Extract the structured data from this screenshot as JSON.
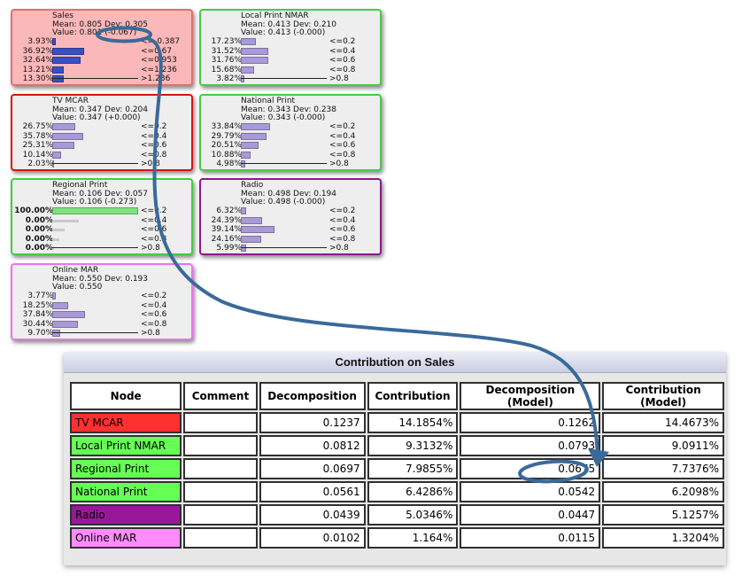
{
  "nodes": {
    "sales": {
      "name": "Sales",
      "stats": "Mean: 0.805 Dev: 0.305",
      "value": "Value: 0.801 (-0.067)",
      "bins": [
        {
          "pct": "3.93%",
          "label": "<=-0.387",
          "frac": 0.039
        },
        {
          "pct": "36.92%",
          "label": "<=0.67",
          "frac": 0.369
        },
        {
          "pct": "32.64%",
          "label": "<=0.953",
          "frac": 0.326
        },
        {
          "pct": "13.21%",
          "label": "<=1.236",
          "frac": 0.132
        },
        {
          "pct": "13.30%",
          "label": ">1.236",
          "frac": 0.133
        }
      ]
    },
    "local": {
      "name": "Local Print NMAR",
      "stats": "Mean: 0.413 Dev: 0.210",
      "value": "Value: 0.413 (-0.000)",
      "bins": [
        {
          "pct": "17.23%",
          "label": "<=0.2",
          "frac": 0.172
        },
        {
          "pct": "31.52%",
          "label": "<=0.4",
          "frac": 0.315
        },
        {
          "pct": "31.76%",
          "label": "<=0.6",
          "frac": 0.318
        },
        {
          "pct": "15.68%",
          "label": "<=0.8",
          "frac": 0.157
        },
        {
          "pct": "3.82%",
          "label": ">0.8",
          "frac": 0.038
        }
      ]
    },
    "tv": {
      "name": "TV MCAR",
      "stats": "Mean: 0.347 Dev: 0.204",
      "value": "Value: 0.347 (+0.000)",
      "bins": [
        {
          "pct": "26.75%",
          "label": "<=0.2",
          "frac": 0.268
        },
        {
          "pct": "35.78%",
          "label": "<=0.4",
          "frac": 0.358
        },
        {
          "pct": "25.31%",
          "label": "<=0.6",
          "frac": 0.253
        },
        {
          "pct": "10.14%",
          "label": "<=0.8",
          "frac": 0.101
        },
        {
          "pct": "2.03%",
          "label": ">0.8",
          "frac": 0.02
        }
      ]
    },
    "national": {
      "name": "National Print",
      "stats": "Mean: 0.343 Dev: 0.238",
      "value": "Value: 0.343 (-0.000)",
      "bins": [
        {
          "pct": "33.84%",
          "label": "<=0.2",
          "frac": 0.338
        },
        {
          "pct": "29.79%",
          "label": "<=0.4",
          "frac": 0.298
        },
        {
          "pct": "20.51%",
          "label": "<=0.6",
          "frac": 0.205
        },
        {
          "pct": "10.88%",
          "label": "<=0.8",
          "frac": 0.109
        },
        {
          "pct": "4.98%",
          "label": ">0.8",
          "frac": 0.05
        }
      ]
    },
    "regional": {
      "name": "Regional Print",
      "stats": "Mean: 0.106 Dev: 0.057",
      "value": "Value: 0.106 (-0.273)",
      "bins": [
        {
          "pct": "100.00%",
          "label": "<=0.2",
          "frac": 1.0
        },
        {
          "pct": "0.00%",
          "label": "<=0.4",
          "frac": 0.0
        },
        {
          "pct": "0.00%",
          "label": "<=0.6",
          "frac": 0.0
        },
        {
          "pct": "0.00%",
          "label": "<=0.8",
          "frac": 0.0
        },
        {
          "pct": "0.00%",
          "label": ">0.8",
          "frac": 0.0
        }
      ]
    },
    "radio": {
      "name": "Radio",
      "stats": "Mean: 0.498 Dev: 0.194",
      "value": "Value: 0.498 (-0.000)",
      "bins": [
        {
          "pct": "6.32%",
          "label": "<=0.2",
          "frac": 0.063
        },
        {
          "pct": "24.39%",
          "label": "<=0.4",
          "frac": 0.244
        },
        {
          "pct": "39.14%",
          "label": "<=0.6",
          "frac": 0.391
        },
        {
          "pct": "24.16%",
          "label": "<=0.8",
          "frac": 0.242
        },
        {
          "pct": "5.99%",
          "label": ">0.8",
          "frac": 0.06
        }
      ]
    },
    "online": {
      "name": "Online MAR",
      "stats": "Mean: 0.550 Dev: 0.193",
      "value": "Value: 0.550",
      "bins": [
        {
          "pct": "3.77%",
          "label": "<=0.2",
          "frac": 0.038
        },
        {
          "pct": "18.25%",
          "label": "<=0.4",
          "frac": 0.183
        },
        {
          "pct": "37.84%",
          "label": "<=0.6",
          "frac": 0.378
        },
        {
          "pct": "30.44%",
          "label": "<=0.8",
          "frac": 0.304
        },
        {
          "pct": "9.70%",
          "label": ">0.8",
          "frac": 0.097
        }
      ]
    }
  },
  "colors": {
    "sales_bg": "#fbb8b8",
    "sales_border": "#e07070",
    "green_border": "#44cc44",
    "red_border": "#e01010",
    "purple_border": "#8a1a8a",
    "pink_border": "#f070f0",
    "node_bg": "#eeeeee",
    "bar_purple": "#a79ad6",
    "bar_blue": "#3a4fc0",
    "bar_green": "#7ee07e",
    "bar_gray": "#c8c8c8",
    "arrow": "#3a6a9a",
    "cell_tv": "#ff3030",
    "cell_local": "#66ff55",
    "cell_regional": "#66ff55",
    "cell_national": "#66ff55",
    "cell_radio": "#991899",
    "cell_online": "#ff8cff"
  },
  "panel": {
    "title": "Contribution on Sales",
    "columns": [
      "Node",
      "Comment",
      "Decomposition",
      "Contribution",
      "Decomposition (Model)",
      "Contribution (Model)"
    ],
    "rows": [
      {
        "node": "TV MCAR",
        "comment": "",
        "decomposition": "0.1237",
        "contribution": "14.1854%",
        "decomp_model": "0.1262",
        "contrib_model": "14.4673%"
      },
      {
        "node": "Local Print NMAR",
        "comment": "",
        "decomposition": "0.0812",
        "contribution": "9.3132%",
        "decomp_model": "0.0793",
        "contrib_model": "9.0911%"
      },
      {
        "node": "Regional Print",
        "comment": "",
        "decomposition": "0.0697",
        "contribution": "7.9855%",
        "decomp_model": "0.0675",
        "contrib_model": "7.7376%"
      },
      {
        "node": "National Print",
        "comment": "",
        "decomposition": "0.0561",
        "contribution": "6.4286%",
        "decomp_model": "0.0542",
        "contrib_model": "6.2098%"
      },
      {
        "node": "Radio",
        "comment": "",
        "decomposition": "0.0439",
        "contribution": "5.0346%",
        "decomp_model": "0.0447",
        "contrib_model": "5.1257%"
      },
      {
        "node": "Online MAR",
        "comment": "",
        "decomposition": "0.0102",
        "contribution": "1.164%",
        "decomp_model": "0.0115",
        "contrib_model": "1.3204%"
      }
    ]
  }
}
